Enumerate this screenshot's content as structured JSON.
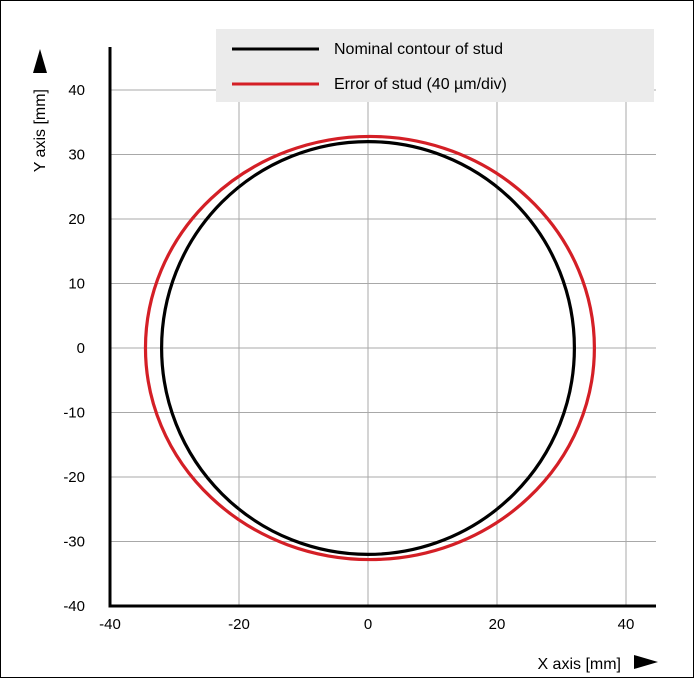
{
  "chart_data": {
    "type": "line",
    "xlabel": "X axis [mm]",
    "ylabel": "Y axis [mm]",
    "xlim": [
      -40,
      45
    ],
    "ylim": [
      -40,
      49
    ],
    "x_ticks": [
      -40,
      -20,
      0,
      20,
      40
    ],
    "y_ticks": [
      -40,
      -30,
      -20,
      -10,
      0,
      10,
      20,
      30,
      40
    ],
    "grid": true,
    "legend_position": "top-right",
    "series": [
      {
        "name": "Nominal contour of stud",
        "color": "#000000",
        "shape": "circle",
        "center": [
          0,
          0
        ],
        "radius_x": 32,
        "radius_y": 32
      },
      {
        "name": "Error of stud (40 µm/div)",
        "color": "#d41f26",
        "shape": "ellipse",
        "center": [
          0,
          0
        ],
        "radius_x": 34.8,
        "radius_y": 32.8,
        "x_extent": [
          -34.5,
          35.1
        ]
      }
    ]
  }
}
